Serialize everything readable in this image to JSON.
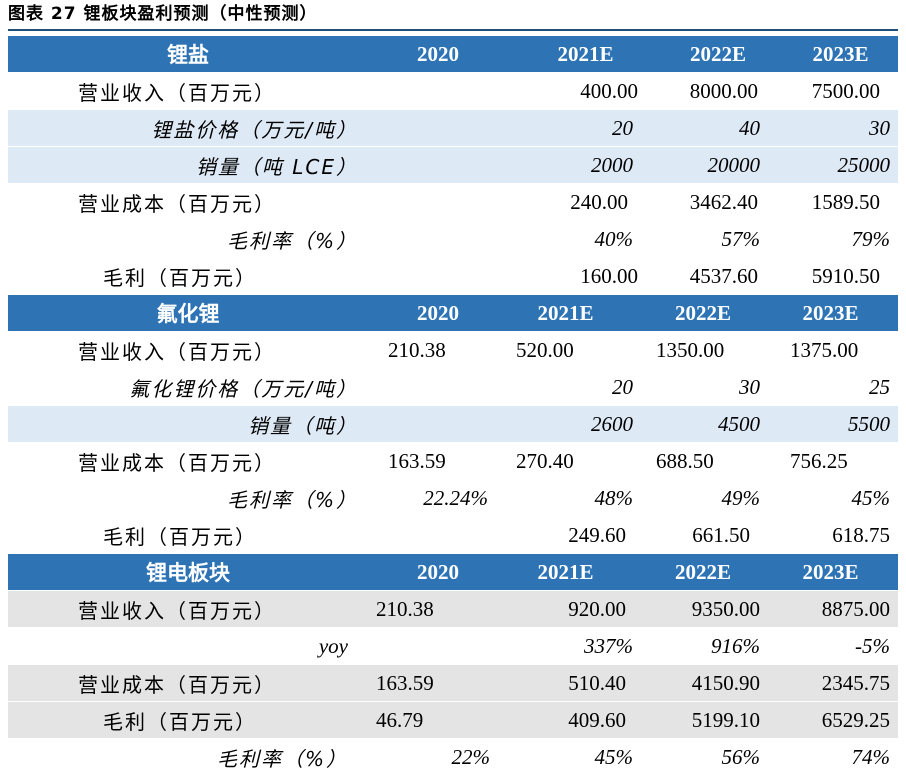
{
  "title": "图表 27 锂板块盈利预测（中性预测）",
  "sections": [
    {
      "header": {
        "label": "锂盐",
        "years": [
          "2020",
          "2021E",
          "2022E",
          "2023E"
        ]
      },
      "rows": [
        {
          "label": "营业收入（百万元）",
          "values": [
            "",
            "400.00",
            "8000.00",
            "7500.00"
          ]
        },
        {
          "label": "锂盐价格（万元/吨）",
          "values": [
            "",
            "20",
            "40",
            "30"
          ]
        },
        {
          "label": "销量（吨 LCE）",
          "values": [
            "",
            "2000",
            "20000",
            "25000"
          ]
        },
        {
          "label": "营业成本（百万元）",
          "values": [
            "",
            "240.00",
            "3462.40",
            "1589.50"
          ]
        },
        {
          "label": "毛利率（%）",
          "values": [
            "",
            "40%",
            "57%",
            "79%"
          ]
        },
        {
          "label": "毛利（百万元）",
          "values": [
            "",
            "160.00",
            "4537.60",
            "5910.50"
          ]
        }
      ]
    },
    {
      "header": {
        "label": "氟化锂",
        "years": [
          "2020",
          "2021E",
          "2022E",
          "2023E"
        ]
      },
      "rows": [
        {
          "label": "营业收入（百万元）",
          "values": [
            "210.38",
            "520.00",
            "1350.00",
            "1375.00"
          ]
        },
        {
          "label": "氟化锂价格（万元/吨）",
          "values": [
            "",
            "20",
            "30",
            "25"
          ]
        },
        {
          "label": "销量（吨）",
          "values": [
            "",
            "2600",
            "4500",
            "5500"
          ]
        },
        {
          "label": "营业成本（百万元）",
          "values": [
            "163.59",
            "270.40",
            "688.50",
            "756.25"
          ]
        },
        {
          "label": "毛利率（%）",
          "values": [
            "22.24%",
            "48%",
            "49%",
            "45%"
          ]
        },
        {
          "label": "毛利（百万元）",
          "values": [
            "",
            "249.60",
            "661.50",
            "618.75"
          ]
        }
      ]
    },
    {
      "header": {
        "label": "锂电板块",
        "years": [
          "2020",
          "2021E",
          "2022E",
          "2023E"
        ]
      },
      "rows": [
        {
          "label": "营业收入（百万元）",
          "values": [
            "210.38",
            "920.00",
            "9350.00",
            "8875.00"
          ]
        },
        {
          "label": "yoy",
          "values": [
            "",
            "337%",
            "916%",
            "-5%"
          ]
        },
        {
          "label": "营业成本（百万元）",
          "values": [
            "163.59",
            "510.40",
            "4150.90",
            "2345.75"
          ]
        },
        {
          "label": "毛利（百万元）",
          "values": [
            "46.79",
            "409.60",
            "5199.10",
            "6529.25"
          ]
        },
        {
          "label": "毛利率（%）",
          "values": [
            "22%",
            "45%",
            "56%",
            "74%"
          ]
        }
      ]
    }
  ]
}
